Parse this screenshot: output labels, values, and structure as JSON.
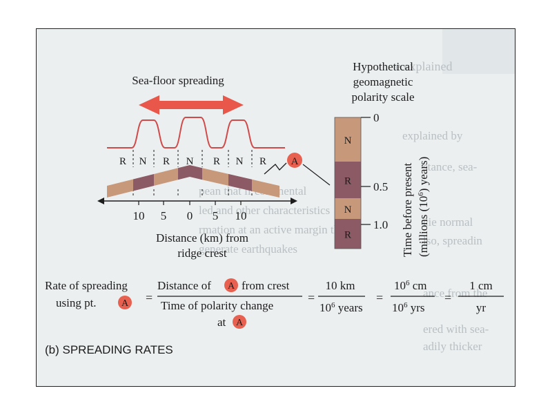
{
  "title": "Sea-floor spreading",
  "polarity_scale_title": [
    "Hypothetical",
    "geomagnetic",
    "polarity scale"
  ],
  "ridge_bands": [
    "R",
    "N",
    "R",
    "N",
    "R",
    "N",
    "R"
  ],
  "distance_ticks": [
    "10",
    "5",
    "0",
    "5",
    "10"
  ],
  "distance_label": [
    "Distance (km) from",
    "ridge crest"
  ],
  "point_label": "A",
  "scale_bands": [
    {
      "label": "N",
      "color": "#c8987a"
    },
    {
      "label": "R",
      "color": "#8b5a64"
    },
    {
      "label": "N",
      "color": "#c8987a"
    },
    {
      "label": "R",
      "color": "#8b5a64"
    }
  ],
  "time_ticks": [
    "0",
    "0.5",
    "1.0"
  ],
  "time_axis_label": [
    "Time before present",
    "(millions (10",
    "6",
    ") years)"
  ],
  "formula": {
    "lhs_line1": "Rate of spreading",
    "lhs_line2": "using pt.",
    "eq": "=",
    "num1_pre": "Distance of",
    "num1_post": "from crest",
    "den1_pre": "Time of polarity change",
    "den1_at": "at",
    "num2": "10 km",
    "den2_base": "10",
    "den2_exp": "6",
    "den2_unit": " years",
    "num3_base": "10",
    "num3_exp": "6",
    "num3_unit": " cm",
    "den3_base": "10",
    "den3_exp": "6",
    "den3_unit": " yrs",
    "num4": "1 cm",
    "den4": "yr"
  },
  "caption": "(b) SPREADING RATES",
  "colors": {
    "arrow": "#e8574a",
    "point": "#e8604f",
    "light_band": "#c8987a",
    "dark_band": "#8b5a64",
    "magnetic_curve": "#d14a4a"
  }
}
